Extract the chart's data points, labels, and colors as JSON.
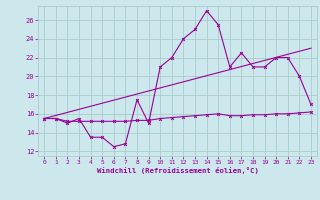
{
  "bg_color": "#cce8ec",
  "grid_color": "#aacccc",
  "line_color": "#990099",
  "xlabel": "Windchill (Refroidissement éolien,°C)",
  "xlim": [
    -0.5,
    23.5
  ],
  "ylim": [
    11.5,
    27.5
  ],
  "yticks": [
    12,
    14,
    16,
    18,
    20,
    22,
    24,
    26
  ],
  "xticks": [
    0,
    1,
    2,
    3,
    4,
    5,
    6,
    7,
    8,
    9,
    10,
    11,
    12,
    13,
    14,
    15,
    16,
    17,
    18,
    19,
    20,
    21,
    22,
    23
  ],
  "line1_x": [
    0,
    1,
    2,
    3,
    4,
    5,
    6,
    7,
    8,
    9,
    10,
    11,
    12,
    13,
    14,
    15,
    16,
    17,
    18,
    19,
    20,
    21,
    22,
    23
  ],
  "line1_y": [
    15.5,
    15.5,
    15.0,
    15.5,
    13.5,
    13.5,
    12.5,
    12.8,
    17.5,
    15.0,
    21.0,
    22.0,
    24.0,
    25.0,
    27.0,
    25.5,
    21.0,
    22.5,
    21.0,
    21.0,
    22.0,
    22.0,
    20.0,
    17.0
  ],
  "line2_x": [
    0,
    1,
    2,
    3,
    4,
    5,
    6,
    7,
    8,
    9,
    10,
    11,
    12,
    13,
    14,
    15,
    16,
    17,
    18,
    19,
    20,
    21,
    22,
    23
  ],
  "line2_y": [
    15.5,
    15.5,
    15.2,
    15.2,
    15.2,
    15.2,
    15.2,
    15.2,
    15.3,
    15.3,
    15.5,
    15.6,
    15.7,
    15.8,
    15.9,
    16.0,
    15.8,
    15.8,
    15.9,
    15.9,
    16.0,
    16.0,
    16.1,
    16.2
  ],
  "line3_x": [
    0,
    23
  ],
  "line3_y": [
    15.5,
    23.0
  ]
}
